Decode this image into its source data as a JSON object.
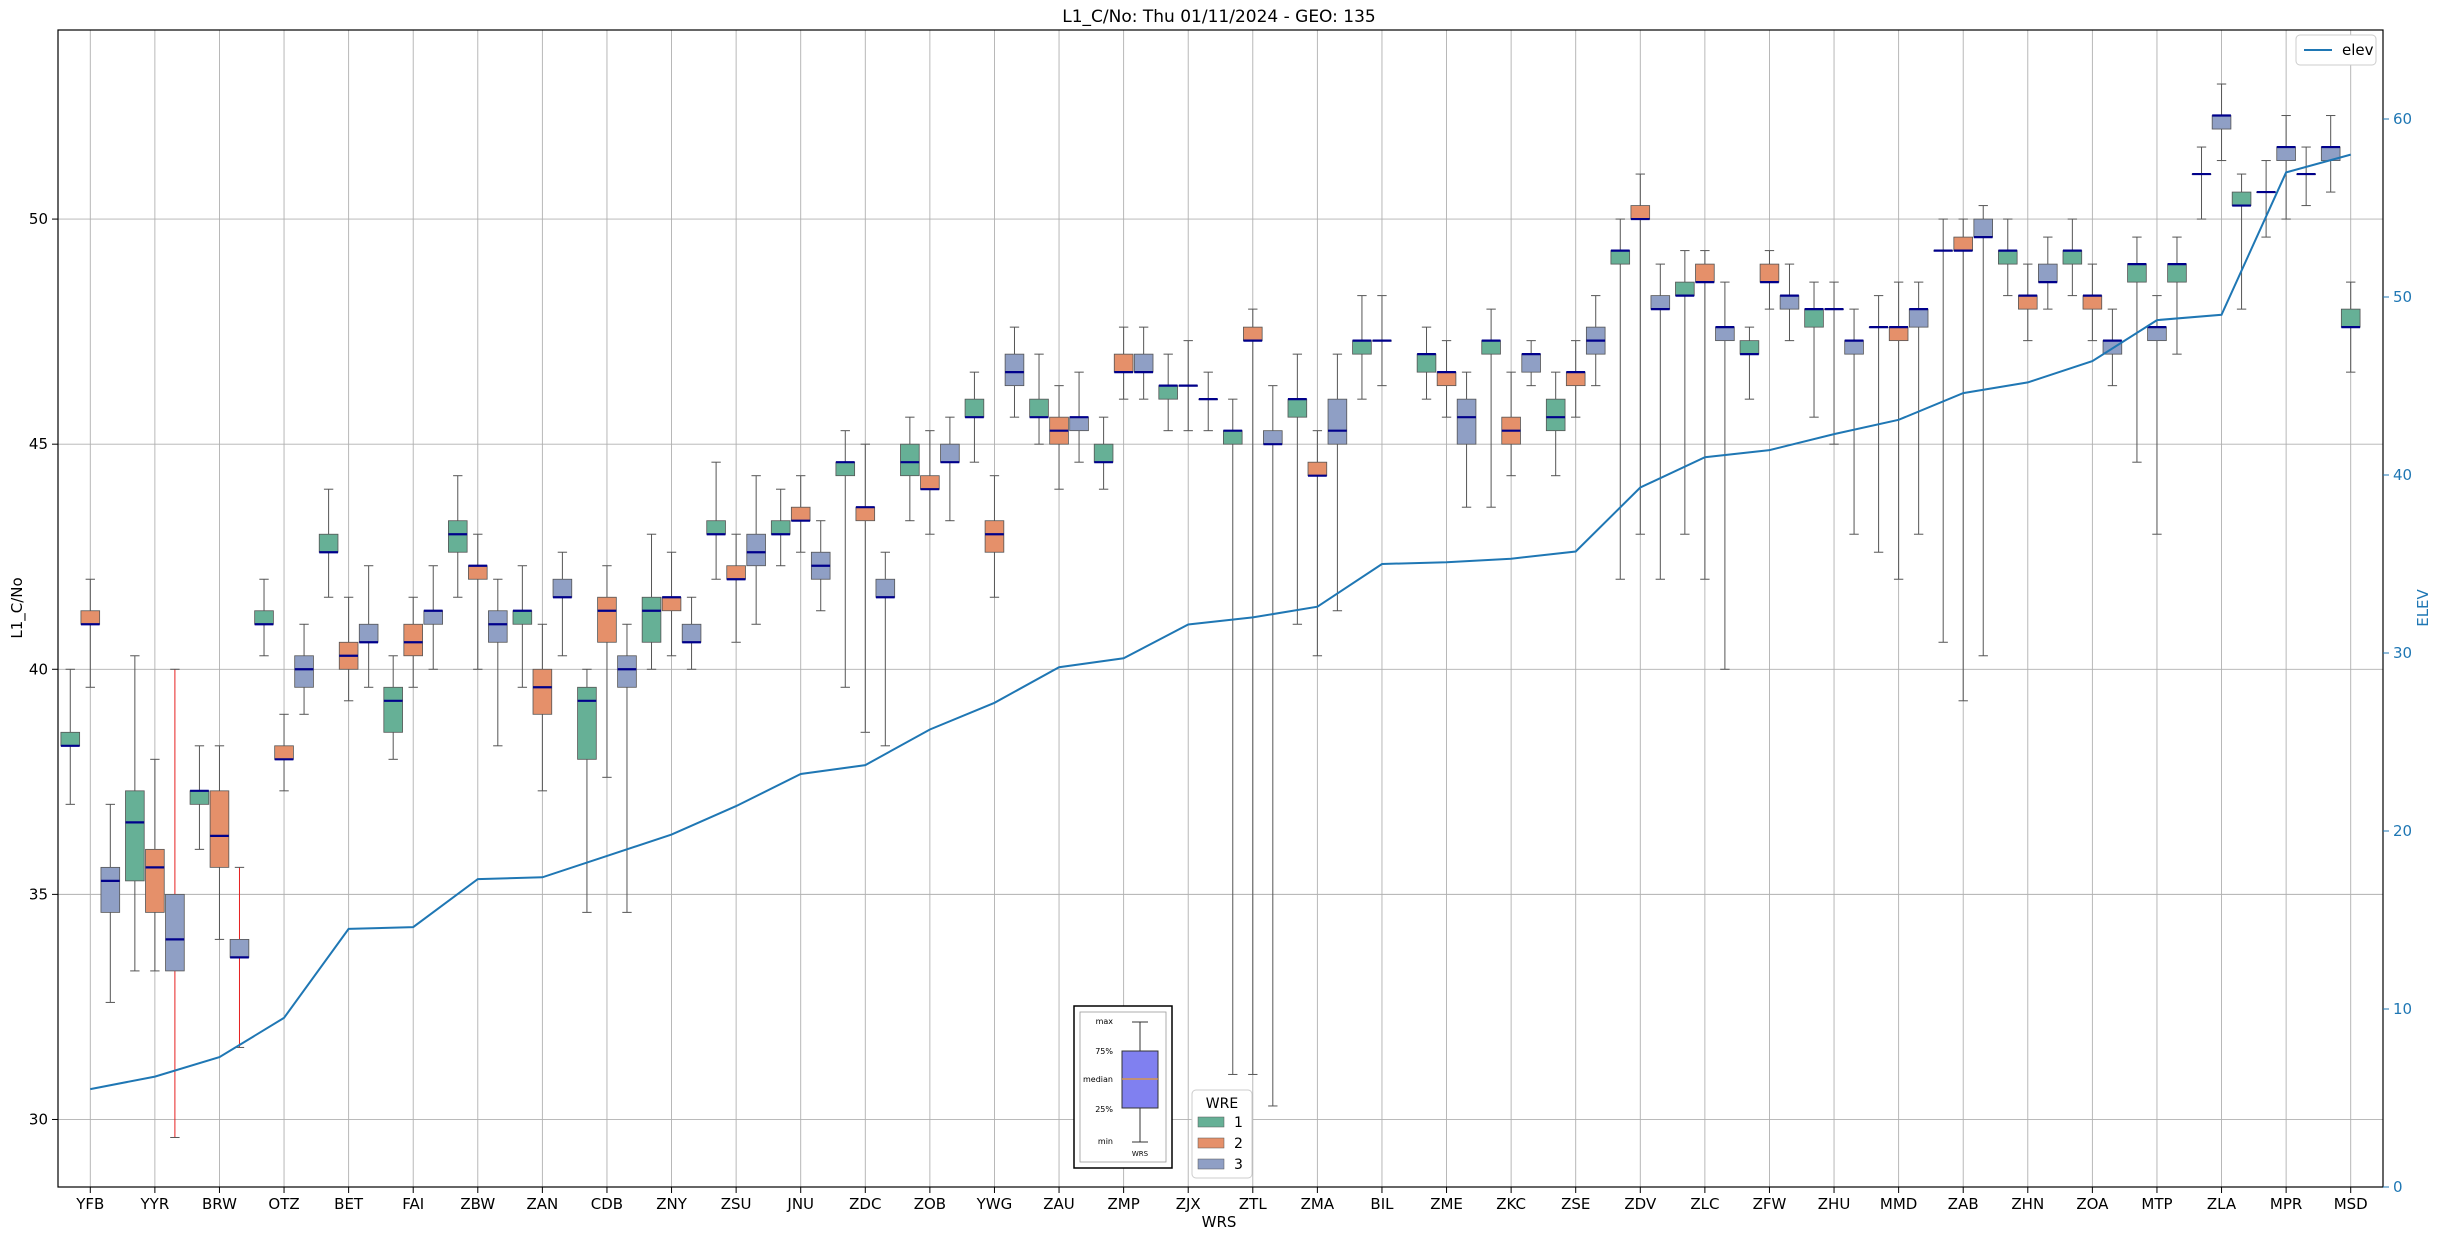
{
  "chart_data": {
    "type": "box",
    "title": "L1_C/No: Thu 01/11/2024 - GEO: 135",
    "xlabel": "WRS",
    "ylabel": "L1_C/No",
    "y2label": "ELEV",
    "ylim": [
      28.5,
      54.2
    ],
    "y2lim": [
      0,
      65
    ],
    "yticks": [
      "30",
      "35",
      "40",
      "45",
      "50"
    ],
    "y2ticks": [
      "0",
      "10",
      "20",
      "30",
      "40",
      "50",
      "60"
    ],
    "grid": true,
    "categories": [
      "YFB",
      "YYR",
      "BRW",
      "OTZ",
      "BET",
      "FAI",
      "ZBW",
      "ZAN",
      "CDB",
      "ZNY",
      "ZSU",
      "JNU",
      "ZDC",
      "ZOB",
      "YWG",
      "ZAU",
      "ZMP",
      "ZJX",
      "ZTL",
      "ZMA",
      "BIL",
      "ZME",
      "ZKC",
      "ZSE",
      "ZDV",
      "ZLC",
      "ZFW",
      "ZHU",
      "MMD",
      "ZAB",
      "ZHN",
      "ZOA",
      "MTP",
      "ZLA",
      "MPR",
      "MSD"
    ],
    "series_colors": {
      "1": "#66b096",
      "2": "#e5906a",
      "3": "#8f9fc5"
    },
    "median_color": "#00008b",
    "elev_color": "#1f77b4",
    "wre_legend": {
      "title": "WRE",
      "items": [
        "1",
        "2",
        "3"
      ]
    },
    "elev_legend": "elev",
    "inset_labels": [
      "max",
      "75%",
      "median",
      "25%",
      "min",
      "WRS"
    ],
    "boxes": [
      {
        "cat": "YFB",
        "wre": 1,
        "min": 37.0,
        "q1": 38.3,
        "med": 38.3,
        "q3": 38.6,
        "max": 40.0
      },
      {
        "cat": "YFB",
        "wre": 2,
        "min": 39.6,
        "q1": 41.0,
        "med": 41.0,
        "q3": 41.3,
        "max": 42.0
      },
      {
        "cat": "YFB",
        "wre": 3,
        "min": 32.6,
        "q1": 34.6,
        "med": 35.3,
        "q3": 35.6,
        "max": 37.0
      },
      {
        "cat": "YYR",
        "wre": 1,
        "min": 33.3,
        "q1": 35.3,
        "med": 36.6,
        "q3": 37.3,
        "max": 40.3
      },
      {
        "cat": "YYR",
        "wre": 2,
        "min": 33.3,
        "q1": 34.6,
        "med": 35.6,
        "q3": 36.0,
        "max": 38.0
      },
      {
        "cat": "YYR",
        "wre": 3,
        "min": 29.6,
        "q1": 33.3,
        "med": 34.0,
        "q3": 35.0,
        "max": 40.0,
        "red": true
      },
      {
        "cat": "BRW",
        "wre": 1,
        "min": 36.0,
        "q1": 37.0,
        "med": 37.3,
        "q3": 37.3,
        "max": 38.3
      },
      {
        "cat": "BRW",
        "wre": 2,
        "min": 34.0,
        "q1": 35.6,
        "med": 36.3,
        "q3": 37.3,
        "max": 38.3
      },
      {
        "cat": "BRW",
        "wre": 3,
        "min": 31.6,
        "q1": 33.6,
        "med": 33.6,
        "q3": 34.0,
        "max": 35.6,
        "red": true
      },
      {
        "cat": "OTZ",
        "wre": 1,
        "min": 40.3,
        "q1": 41.0,
        "med": 41.0,
        "q3": 41.3,
        "max": 42.0
      },
      {
        "cat": "OTZ",
        "wre": 2,
        "min": 37.3,
        "q1": 38.0,
        "med": 38.0,
        "q3": 38.3,
        "max": 39.0
      },
      {
        "cat": "OTZ",
        "wre": 3,
        "min": 39.0,
        "q1": 39.6,
        "med": 40.0,
        "q3": 40.3,
        "max": 41.0
      },
      {
        "cat": "BET",
        "wre": 1,
        "min": 41.6,
        "q1": 42.6,
        "med": 42.6,
        "q3": 43.0,
        "max": 44.0
      },
      {
        "cat": "BET",
        "wre": 2,
        "min": 39.3,
        "q1": 40.0,
        "med": 40.3,
        "q3": 40.6,
        "max": 41.6
      },
      {
        "cat": "BET",
        "wre": 3,
        "min": 39.6,
        "q1": 40.6,
        "med": 40.6,
        "q3": 41.0,
        "max": 42.3
      },
      {
        "cat": "FAI",
        "wre": 1,
        "min": 38.0,
        "q1": 38.6,
        "med": 39.3,
        "q3": 39.6,
        "max": 40.3
      },
      {
        "cat": "FAI",
        "wre": 2,
        "min": 39.6,
        "q1": 40.3,
        "med": 40.6,
        "q3": 41.0,
        "max": 41.6
      },
      {
        "cat": "FAI",
        "wre": 3,
        "min": 40.0,
        "q1": 41.0,
        "med": 41.3,
        "q3": 41.3,
        "max": 42.3
      },
      {
        "cat": "ZBW",
        "wre": 1,
        "min": 41.6,
        "q1": 42.6,
        "med": 43.0,
        "q3": 43.3,
        "max": 44.3
      },
      {
        "cat": "ZBW",
        "wre": 2,
        "min": 40.0,
        "q1": 42.0,
        "med": 42.3,
        "q3": 42.3,
        "max": 43.0
      },
      {
        "cat": "ZBW",
        "wre": 3,
        "min": 38.3,
        "q1": 40.6,
        "med": 41.0,
        "q3": 41.3,
        "max": 42.0
      },
      {
        "cat": "ZAN",
        "wre": 1,
        "min": 39.6,
        "q1": 41.0,
        "med": 41.3,
        "q3": 41.3,
        "max": 42.3
      },
      {
        "cat": "ZAN",
        "wre": 2,
        "min": 37.3,
        "q1": 39.0,
        "med": 39.6,
        "q3": 40.0,
        "max": 41.0
      },
      {
        "cat": "ZAN",
        "wre": 3,
        "min": 40.3,
        "q1": 41.6,
        "med": 41.6,
        "q3": 42.0,
        "max": 42.6
      },
      {
        "cat": "CDB",
        "wre": 1,
        "min": 34.6,
        "q1": 38.0,
        "med": 39.3,
        "q3": 39.6,
        "max": 40.0
      },
      {
        "cat": "CDB",
        "wre": 2,
        "min": 37.6,
        "q1": 40.6,
        "med": 41.3,
        "q3": 41.6,
        "max": 42.3
      },
      {
        "cat": "CDB",
        "wre": 3,
        "min": 34.6,
        "q1": 39.6,
        "med": 40.0,
        "q3": 40.3,
        "max": 41.0
      },
      {
        "cat": "ZNY",
        "wre": 1,
        "min": 40.0,
        "q1": 40.6,
        "med": 41.3,
        "q3": 41.6,
        "max": 43.0
      },
      {
        "cat": "ZNY",
        "wre": 2,
        "min": 40.3,
        "q1": 41.3,
        "med": 41.6,
        "q3": 41.6,
        "max": 42.6
      },
      {
        "cat": "ZNY",
        "wre": 3,
        "min": 40.0,
        "q1": 40.6,
        "med": 40.6,
        "q3": 41.0,
        "max": 41.6
      },
      {
        "cat": "ZSU",
        "wre": 1,
        "min": 42.0,
        "q1": 43.0,
        "med": 43.0,
        "q3": 43.3,
        "max": 44.6
      },
      {
        "cat": "ZSU",
        "wre": 2,
        "min": 40.6,
        "q1": 42.0,
        "med": 42.0,
        "q3": 42.3,
        "max": 43.0
      },
      {
        "cat": "ZSU",
        "wre": 3,
        "min": 41.0,
        "q1": 42.3,
        "med": 42.6,
        "q3": 43.0,
        "max": 44.3
      },
      {
        "cat": "JNU",
        "wre": 1,
        "min": 42.3,
        "q1": 43.0,
        "med": 43.0,
        "q3": 43.3,
        "max": 44.0
      },
      {
        "cat": "JNU",
        "wre": 2,
        "min": 42.6,
        "q1": 43.3,
        "med": 43.3,
        "q3": 43.6,
        "max": 44.3
      },
      {
        "cat": "JNU",
        "wre": 3,
        "min": 41.3,
        "q1": 42.0,
        "med": 42.3,
        "q3": 42.6,
        "max": 43.3
      },
      {
        "cat": "ZDC",
        "wre": 1,
        "min": 39.6,
        "q1": 44.3,
        "med": 44.6,
        "q3": 44.6,
        "max": 45.3
      },
      {
        "cat": "ZDC",
        "wre": 2,
        "min": 38.6,
        "q1": 43.3,
        "med": 43.6,
        "q3": 43.6,
        "max": 45.0
      },
      {
        "cat": "ZDC",
        "wre": 3,
        "min": 38.3,
        "q1": 41.6,
        "med": 41.6,
        "q3": 42.0,
        "max": 42.6
      },
      {
        "cat": "ZOB",
        "wre": 1,
        "min": 43.3,
        "q1": 44.3,
        "med": 44.6,
        "q3": 45.0,
        "max": 45.6
      },
      {
        "cat": "ZOB",
        "wre": 2,
        "min": 43.0,
        "q1": 44.0,
        "med": 44.0,
        "q3": 44.3,
        "max": 45.3
      },
      {
        "cat": "ZOB",
        "wre": 3,
        "min": 43.3,
        "q1": 44.6,
        "med": 44.6,
        "q3": 45.0,
        "max": 45.6
      },
      {
        "cat": "YWG",
        "wre": 1,
        "min": 44.6,
        "q1": 45.6,
        "med": 45.6,
        "q3": 46.0,
        "max": 46.6
      },
      {
        "cat": "YWG",
        "wre": 2,
        "min": 41.6,
        "q1": 42.6,
        "med": 43.0,
        "q3": 43.3,
        "max": 44.3
      },
      {
        "cat": "YWG",
        "wre": 3,
        "min": 45.6,
        "q1": 46.3,
        "med": 46.6,
        "q3": 47.0,
        "max": 47.6
      },
      {
        "cat": "ZAU",
        "wre": 1,
        "min": 45.0,
        "q1": 45.6,
        "med": 45.6,
        "q3": 46.0,
        "max": 47.0
      },
      {
        "cat": "ZAU",
        "wre": 2,
        "min": 44.0,
        "q1": 45.0,
        "med": 45.3,
        "q3": 45.6,
        "max": 46.3
      },
      {
        "cat": "ZAU",
        "wre": 3,
        "min": 44.6,
        "q1": 45.3,
        "med": 45.6,
        "q3": 45.6,
        "max": 46.6
      },
      {
        "cat": "ZMP",
        "wre": 1,
        "min": 44.0,
        "q1": 44.6,
        "med": 44.6,
        "q3": 45.0,
        "max": 45.6
      },
      {
        "cat": "ZMP",
        "wre": 2,
        "min": 46.0,
        "q1": 46.6,
        "med": 46.6,
        "q3": 47.0,
        "max": 47.6
      },
      {
        "cat": "ZMP",
        "wre": 3,
        "min": 46.0,
        "q1": 46.6,
        "med": 46.6,
        "q3": 47.0,
        "max": 47.6
      },
      {
        "cat": "ZJX",
        "wre": 1,
        "min": 45.3,
        "q1": 46.0,
        "med": 46.3,
        "q3": 46.3,
        "max": 47.0
      },
      {
        "cat": "ZJX",
        "wre": 3,
        "min": 45.3,
        "q1": 46.3,
        "med": 46.3,
        "q3": 46.3,
        "max": 47.3
      },
      {
        "cat": "ZJX",
        "wre": 3,
        "min": 45.3,
        "q1": 46.0,
        "med": 46.0,
        "q3": 46.0,
        "max": 46.6
      },
      {
        "cat": "ZTL",
        "wre": 1,
        "min": 31.0,
        "q1": 45.0,
        "med": 45.3,
        "q3": 45.3,
        "max": 46.0
      },
      {
        "cat": "ZTL",
        "wre": 2,
        "min": 31.0,
        "q1": 47.3,
        "med": 47.3,
        "q3": 47.6,
        "max": 48.0
      },
      {
        "cat": "ZTL",
        "wre": 3,
        "min": 30.3,
        "q1": 45.0,
        "med": 45.0,
        "q3": 45.3,
        "max": 46.3
      },
      {
        "cat": "ZMA",
        "wre": 1,
        "min": 41.0,
        "q1": 45.6,
        "med": 46.0,
        "q3": 46.0,
        "max": 47.0
      },
      {
        "cat": "ZMA",
        "wre": 2,
        "min": 40.3,
        "q1": 44.3,
        "med": 44.3,
        "q3": 44.6,
        "max": 45.3
      },
      {
        "cat": "ZMA",
        "wre": 3,
        "min": 41.3,
        "q1": 45.0,
        "med": 45.3,
        "q3": 46.0,
        "max": 47.0
      },
      {
        "cat": "BIL",
        "wre": 1,
        "min": 46.0,
        "q1": 47.0,
        "med": 47.3,
        "q3": 47.3,
        "max": 48.3
      },
      {
        "cat": "BIL",
        "wre": 3,
        "min": 46.3,
        "q1": 47.3,
        "med": 47.3,
        "q3": 47.3,
        "max": 48.3
      },
      {
        "cat": "ZME",
        "wre": 1,
        "min": 46.0,
        "q1": 46.6,
        "med": 47.0,
        "q3": 47.0,
        "max": 47.6
      },
      {
        "cat": "ZME",
        "wre": 2,
        "min": 45.6,
        "q1": 46.3,
        "med": 46.6,
        "q3": 46.6,
        "max": 47.3
      },
      {
        "cat": "ZME",
        "wre": 3,
        "min": 43.6,
        "q1": 45.0,
        "med": 45.6,
        "q3": 46.0,
        "max": 46.6
      },
      {
        "cat": "ZKC",
        "wre": 1,
        "min": 43.6,
        "q1": 47.0,
        "med": 47.3,
        "q3": 47.3,
        "max": 48.0
      },
      {
        "cat": "ZKC",
        "wre": 2,
        "min": 44.3,
        "q1": 45.0,
        "med": 45.3,
        "q3": 45.6,
        "max": 46.6
      },
      {
        "cat": "ZKC",
        "wre": 3,
        "min": 46.3,
        "q1": 46.6,
        "med": 47.0,
        "q3": 47.0,
        "max": 47.3
      },
      {
        "cat": "ZSE",
        "wre": 1,
        "min": 44.3,
        "q1": 45.3,
        "med": 45.6,
        "q3": 46.0,
        "max": 46.6
      },
      {
        "cat": "ZSE",
        "wre": 2,
        "min": 45.6,
        "q1": 46.3,
        "med": 46.6,
        "q3": 46.6,
        "max": 47.3
      },
      {
        "cat": "ZSE",
        "wre": 3,
        "min": 46.3,
        "q1": 47.0,
        "med": 47.3,
        "q3": 47.6,
        "max": 48.3
      },
      {
        "cat": "ZDV",
        "wre": 1,
        "min": 42.0,
        "q1": 49.0,
        "med": 49.3,
        "q3": 49.3,
        "max": 50.0
      },
      {
        "cat": "ZDV",
        "wre": 2,
        "min": 43.0,
        "q1": 50.0,
        "med": 50.0,
        "q3": 50.3,
        "max": 51.0
      },
      {
        "cat": "ZDV",
        "wre": 3,
        "min": 42.0,
        "q1": 48.0,
        "med": 48.0,
        "q3": 48.3,
        "max": 49.0
      },
      {
        "cat": "ZLC",
        "wre": 1,
        "min": 43.0,
        "q1": 48.3,
        "med": 48.3,
        "q3": 48.6,
        "max": 49.3
      },
      {
        "cat": "ZLC",
        "wre": 2,
        "min": 42.0,
        "q1": 48.6,
        "med": 48.6,
        "q3": 49.0,
        "max": 49.3
      },
      {
        "cat": "ZLC",
        "wre": 3,
        "min": 40.0,
        "q1": 47.3,
        "med": 47.6,
        "q3": 47.6,
        "max": 48.6
      },
      {
        "cat": "ZFW",
        "wre": 1,
        "min": 46.0,
        "q1": 47.0,
        "med": 47.0,
        "q3": 47.3,
        "max": 47.6
      },
      {
        "cat": "ZFW",
        "wre": 2,
        "min": 48.0,
        "q1": 48.6,
        "med": 48.6,
        "q3": 49.0,
        "max": 49.3
      },
      {
        "cat": "ZFW",
        "wre": 3,
        "min": 47.3,
        "q1": 48.0,
        "med": 48.3,
        "q3": 48.3,
        "max": 49.0
      },
      {
        "cat": "ZHU",
        "wre": 1,
        "min": 45.6,
        "q1": 47.6,
        "med": 48.0,
        "q3": 48.0,
        "max": 48.6
      },
      {
        "cat": "ZHU",
        "wre": 3,
        "min": 45.0,
        "q1": 48.0,
        "med": 48.0,
        "q3": 48.0,
        "max": 48.6
      },
      {
        "cat": "ZHU",
        "wre": 3,
        "min": 43.0,
        "q1": 47.0,
        "med": 47.3,
        "q3": 47.3,
        "max": 48.0
      },
      {
        "cat": "MMD",
        "wre": 1,
        "min": 42.6,
        "q1": 47.6,
        "med": 47.6,
        "q3": 47.6,
        "max": 48.3
      },
      {
        "cat": "MMD",
        "wre": 2,
        "min": 42.0,
        "q1": 47.3,
        "med": 47.6,
        "q3": 47.6,
        "max": 48.6
      },
      {
        "cat": "MMD",
        "wre": 3,
        "min": 43.0,
        "q1": 47.6,
        "med": 48.0,
        "q3": 48.0,
        "max": 48.6
      },
      {
        "cat": "ZAB",
        "wre": 1,
        "min": 40.6,
        "q1": 49.3,
        "med": 49.3,
        "q3": 49.3,
        "max": 50.0
      },
      {
        "cat": "ZAB",
        "wre": 2,
        "min": 39.3,
        "q1": 49.3,
        "med": 49.3,
        "q3": 49.6,
        "max": 50.0
      },
      {
        "cat": "ZAB",
        "wre": 3,
        "min": 40.3,
        "q1": 49.6,
        "med": 49.6,
        "q3": 50.0,
        "max": 50.3
      },
      {
        "cat": "ZHN",
        "wre": 1,
        "min": 48.3,
        "q1": 49.0,
        "med": 49.3,
        "q3": 49.3,
        "max": 50.0
      },
      {
        "cat": "ZHN",
        "wre": 2,
        "min": 47.3,
        "q1": 48.0,
        "med": 48.3,
        "q3": 48.3,
        "max": 49.0
      },
      {
        "cat": "ZHN",
        "wre": 3,
        "min": 48.0,
        "q1": 48.6,
        "med": 48.6,
        "q3": 49.0,
        "max": 49.6
      },
      {
        "cat": "ZOA",
        "wre": 1,
        "min": 48.3,
        "q1": 49.0,
        "med": 49.3,
        "q3": 49.3,
        "max": 50.0
      },
      {
        "cat": "ZOA",
        "wre": 2,
        "min": 47.3,
        "q1": 48.0,
        "med": 48.3,
        "q3": 48.3,
        "max": 49.0
      },
      {
        "cat": "ZOA",
        "wre": 3,
        "min": 46.3,
        "q1": 47.0,
        "med": 47.3,
        "q3": 47.3,
        "max": 48.0
      },
      {
        "cat": "MTP",
        "wre": 1,
        "min": 44.6,
        "q1": 48.6,
        "med": 49.0,
        "q3": 49.0,
        "max": 49.6
      },
      {
        "cat": "MTP",
        "wre": 3,
        "min": 43.0,
        "q1": 47.3,
        "med": 47.6,
        "q3": 47.6,
        "max": 48.3
      },
      {
        "cat": "MTP",
        "wre": 1,
        "min": 47.0,
        "q1": 48.6,
        "med": 49.0,
        "q3": 49.0,
        "max": 49.6
      },
      {
        "cat": "ZLA",
        "wre": 3,
        "min": 50.0,
        "q1": 51.0,
        "med": 51.0,
        "q3": 51.0,
        "max": 51.6
      },
      {
        "cat": "ZLA",
        "wre": 3,
        "min": 51.3,
        "q1": 52.0,
        "med": 52.3,
        "q3": 52.3,
        "max": 53.0
      },
      {
        "cat": "ZLA",
        "wre": 1,
        "min": 48.0,
        "q1": 50.3,
        "med": 50.3,
        "q3": 50.6,
        "max": 51.0
      },
      {
        "cat": "MPR",
        "wre": 3,
        "min": 49.6,
        "q1": 50.6,
        "med": 50.6,
        "q3": 50.6,
        "max": 51.3
      },
      {
        "cat": "MPR",
        "wre": 3,
        "min": 50.0,
        "q1": 51.3,
        "med": 51.6,
        "q3": 51.6,
        "max": 52.3
      },
      {
        "cat": "MPR",
        "wre": 3,
        "min": 50.3,
        "q1": 51.0,
        "med": 51.0,
        "q3": 51.0,
        "max": 51.6
      },
      {
        "cat": "MSD",
        "wre": 3,
        "min": 50.6,
        "q1": 51.3,
        "med": 51.6,
        "q3": 51.6,
        "max": 52.3
      },
      {
        "cat": "MSD",
        "wre": 1,
        "min": 46.6,
        "q1": 47.6,
        "med": 47.6,
        "q3": 48.0,
        "max": 48.6
      }
    ],
    "elev": [
      5.5,
      6.2,
      7.3,
      9.5,
      14.5,
      14.6,
      17.3,
      17.4,
      18.6,
      19.8,
      21.4,
      23.2,
      23.7,
      25.7,
      27.2,
      29.2,
      29.7,
      31.6,
      32.0,
      32.6,
      35.0,
      35.1,
      35.3,
      35.7,
      39.3,
      41.0,
      41.4,
      42.3,
      43.1,
      44.6,
      45.2,
      46.4,
      48.7,
      49.0,
      57.0,
      58.0
    ]
  }
}
